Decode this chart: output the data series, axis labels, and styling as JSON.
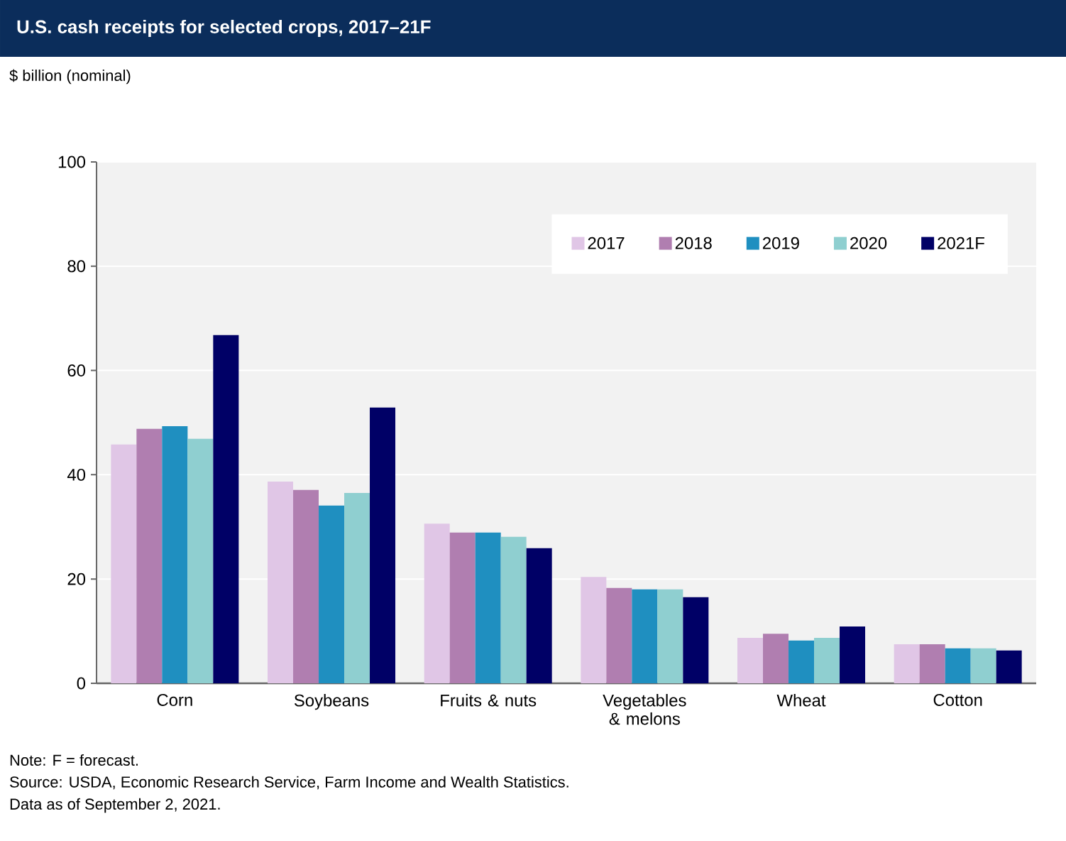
{
  "chart_data": {
    "type": "bar",
    "title": "U.S. cash receipts for selected crops, 2017–21F",
    "ylabel": "$ billion (nominal)",
    "categories": [
      "Corn",
      "Soybeans",
      "Fruits & nuts",
      "Vegetables & melons",
      "Wheat",
      "Cotton"
    ],
    "series": [
      {
        "name": "2017",
        "color": "#e0c6e6",
        "values": [
          45.8,
          38.7,
          30.6,
          20.4,
          8.7,
          7.5
        ]
      },
      {
        "name": "2018",
        "color": "#b07eb0",
        "values": [
          48.8,
          37.1,
          28.9,
          18.3,
          9.5,
          7.5
        ]
      },
      {
        "name": "2019",
        "color": "#1f8fc0",
        "values": [
          49.3,
          34.1,
          28.9,
          18.0,
          8.2,
          6.7
        ]
      },
      {
        "name": "2020",
        "color": "#8fcfd0",
        "values": [
          46.9,
          36.5,
          28.1,
          18.0,
          8.7,
          6.7
        ]
      },
      {
        "name": "2021F",
        "color": "#000066",
        "values": [
          66.8,
          52.9,
          25.9,
          16.5,
          10.9,
          6.3
        ]
      }
    ],
    "ylim": [
      0,
      100
    ],
    "yticks": [
      0,
      20,
      40,
      60,
      80,
      100
    ],
    "grid": "y",
    "legend": "top right",
    "annotations": [
      "Note: F = forecast.",
      "Source: USDA, Economic Research Service, Farm Income and Wealth Statistics.",
      "Data as of September 2, 2021."
    ]
  }
}
